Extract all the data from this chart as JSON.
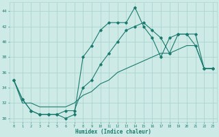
{
  "xlabel": "Humidex (Indice chaleur)",
  "background_color": "#cdeae6",
  "grid_color": "#aad5cf",
  "line_color": "#1a7a6e",
  "x_values": [
    0,
    1,
    2,
    3,
    4,
    5,
    6,
    7,
    8,
    9,
    10,
    11,
    12,
    13,
    14,
    15,
    16,
    17,
    18,
    19,
    20,
    21,
    22,
    23
  ],
  "series1": [
    35.0,
    32.5,
    31.0,
    30.5,
    30.5,
    30.5,
    30.0,
    30.5,
    38.0,
    39.5,
    41.5,
    42.5,
    42.5,
    42.5,
    44.5,
    42.0,
    40.5,
    38.0,
    40.5,
    41.0,
    41.0,
    39.5,
    36.5,
    36.5
  ],
  "series2": [
    35.0,
    32.5,
    31.0,
    30.5,
    30.5,
    30.5,
    31.0,
    31.0,
    34.0,
    35.0,
    37.0,
    38.5,
    40.0,
    41.5,
    42.0,
    42.5,
    41.5,
    40.5,
    38.5,
    41.0,
    41.0,
    41.0,
    36.5,
    36.5
  ],
  "series3": [
    35.0,
    32.0,
    32.0,
    31.5,
    31.5,
    31.5,
    31.5,
    32.0,
    33.0,
    33.5,
    34.5,
    35.0,
    36.0,
    36.5,
    37.0,
    37.5,
    38.0,
    38.5,
    38.5,
    39.0,
    39.5,
    39.5,
    36.5,
    36.5
  ],
  "ylim": [
    29.5,
    45.2
  ],
  "xlim": [
    -0.5,
    23.5
  ],
  "yticks": [
    30,
    32,
    34,
    36,
    38,
    40,
    42,
    44
  ],
  "xticks": [
    0,
    1,
    2,
    3,
    4,
    5,
    6,
    7,
    8,
    9,
    10,
    11,
    12,
    13,
    14,
    15,
    16,
    17,
    18,
    19,
    20,
    21,
    22,
    23
  ]
}
